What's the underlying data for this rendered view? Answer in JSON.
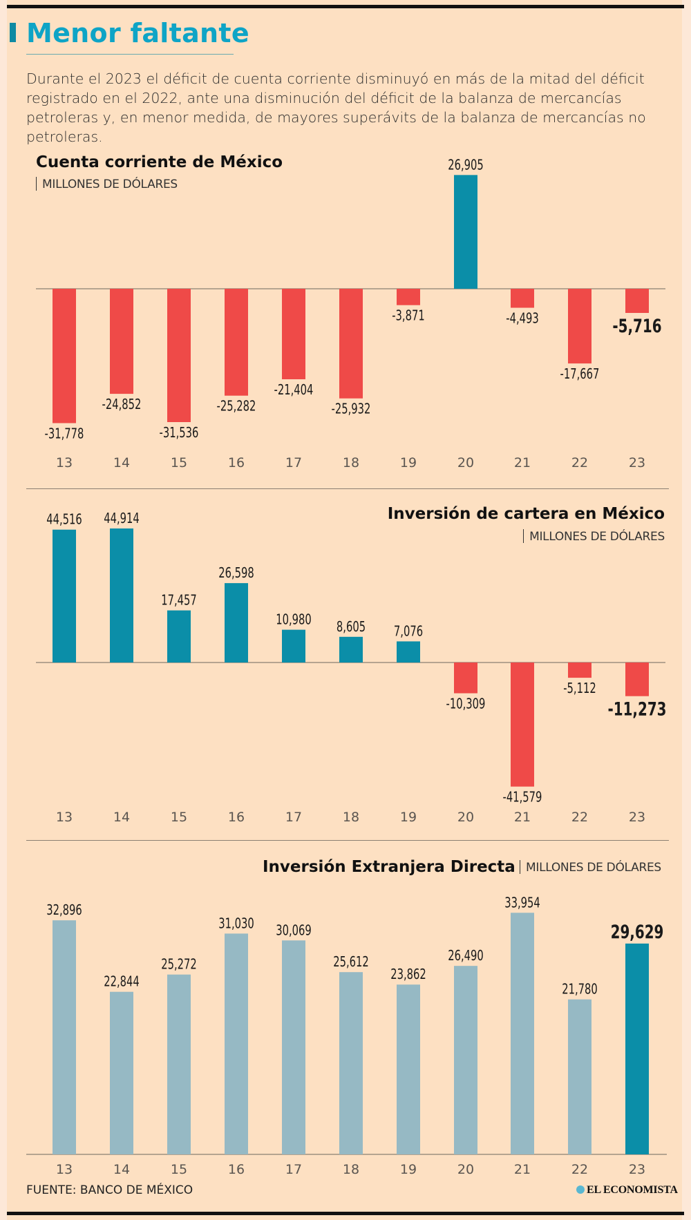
{
  "header": {
    "title": "Menor faltante",
    "intro": "Durante el 2023 el déficit de cuenta corriente disminuyó en más de la mitad del déficit registrado en el 2022, ante una disminución del déficit de la balanza de mercancías petroleras y, en menor medida, de mayores superávits de la balanza de mercancías no petroleras."
  },
  "colors": {
    "title": "#0ea4c6",
    "positive": "#0b8ea8",
    "negative": "#ef4a48",
    "ied_bar": "#96b9c4",
    "ied_highlight": "#0b8ea8",
    "background": "#fde0c2"
  },
  "chart_data": [
    {
      "type": "bar",
      "title": "Cuenta corriente de México",
      "unit": "MILLONES DE DÓLARES",
      "categories": [
        "13",
        "14",
        "15",
        "16",
        "17",
        "18",
        "19",
        "20",
        "21",
        "22",
        "23"
      ],
      "values": [
        -31778,
        -24852,
        -31536,
        -25282,
        -21404,
        -25932,
        -3871,
        26905,
        -4493,
        -17667,
        -5716
      ],
      "labels": [
        "-31,778",
        "-24,852",
        "-31,536",
        "-25,282",
        "-21,404",
        "-25,932",
        "-3,871",
        "26,905",
        "-4,493",
        "-17,667",
        "-5,716"
      ],
      "highlight_index": 10,
      "xlabel": "",
      "ylabel": "",
      "ylim": [
        -32000,
        27000
      ],
      "grid": false
    },
    {
      "type": "bar",
      "title": "Inversión de cartera en México",
      "unit": "MILLONES DE DÓLARES",
      "categories": [
        "13",
        "14",
        "15",
        "16",
        "17",
        "18",
        "19",
        "20",
        "21",
        "22",
        "23"
      ],
      "values": [
        44516,
        44914,
        17457,
        26598,
        10980,
        8605,
        7076,
        -10309,
        -41579,
        -5112,
        -11273
      ],
      "labels": [
        "44,516",
        "44,914",
        "17,457",
        "26,598",
        "10,980",
        "8,605",
        "7,076",
        "-10,309",
        "-41,579",
        "-5,112",
        "-11,273"
      ],
      "highlight_index": 10,
      "xlabel": "",
      "ylabel": "",
      "ylim": [
        -42000,
        45000
      ],
      "grid": false
    },
    {
      "type": "bar",
      "title": "Inversión Extranjera Directa",
      "unit": "MILLONES DE DÓLARES",
      "categories": [
        "13",
        "14",
        "15",
        "16",
        "17",
        "18",
        "19",
        "20",
        "21",
        "22",
        "23"
      ],
      "values": [
        32896,
        22844,
        25272,
        31030,
        30069,
        25612,
        23862,
        26490,
        33954,
        21780,
        29629
      ],
      "labels": [
        "32,896",
        "22,844",
        "25,272",
        "31,030",
        "30,069",
        "25,612",
        "23,862",
        "26,490",
        "33,954",
        "21,780",
        "29,629"
      ],
      "highlight_index": 10,
      "xlabel": "",
      "ylabel": "",
      "ylim": [
        0,
        34000
      ],
      "grid": false
    }
  ],
  "footer": {
    "source": "FUENTE: BANCO DE MÉXICO",
    "brand": "EL ECONOMISTA"
  }
}
